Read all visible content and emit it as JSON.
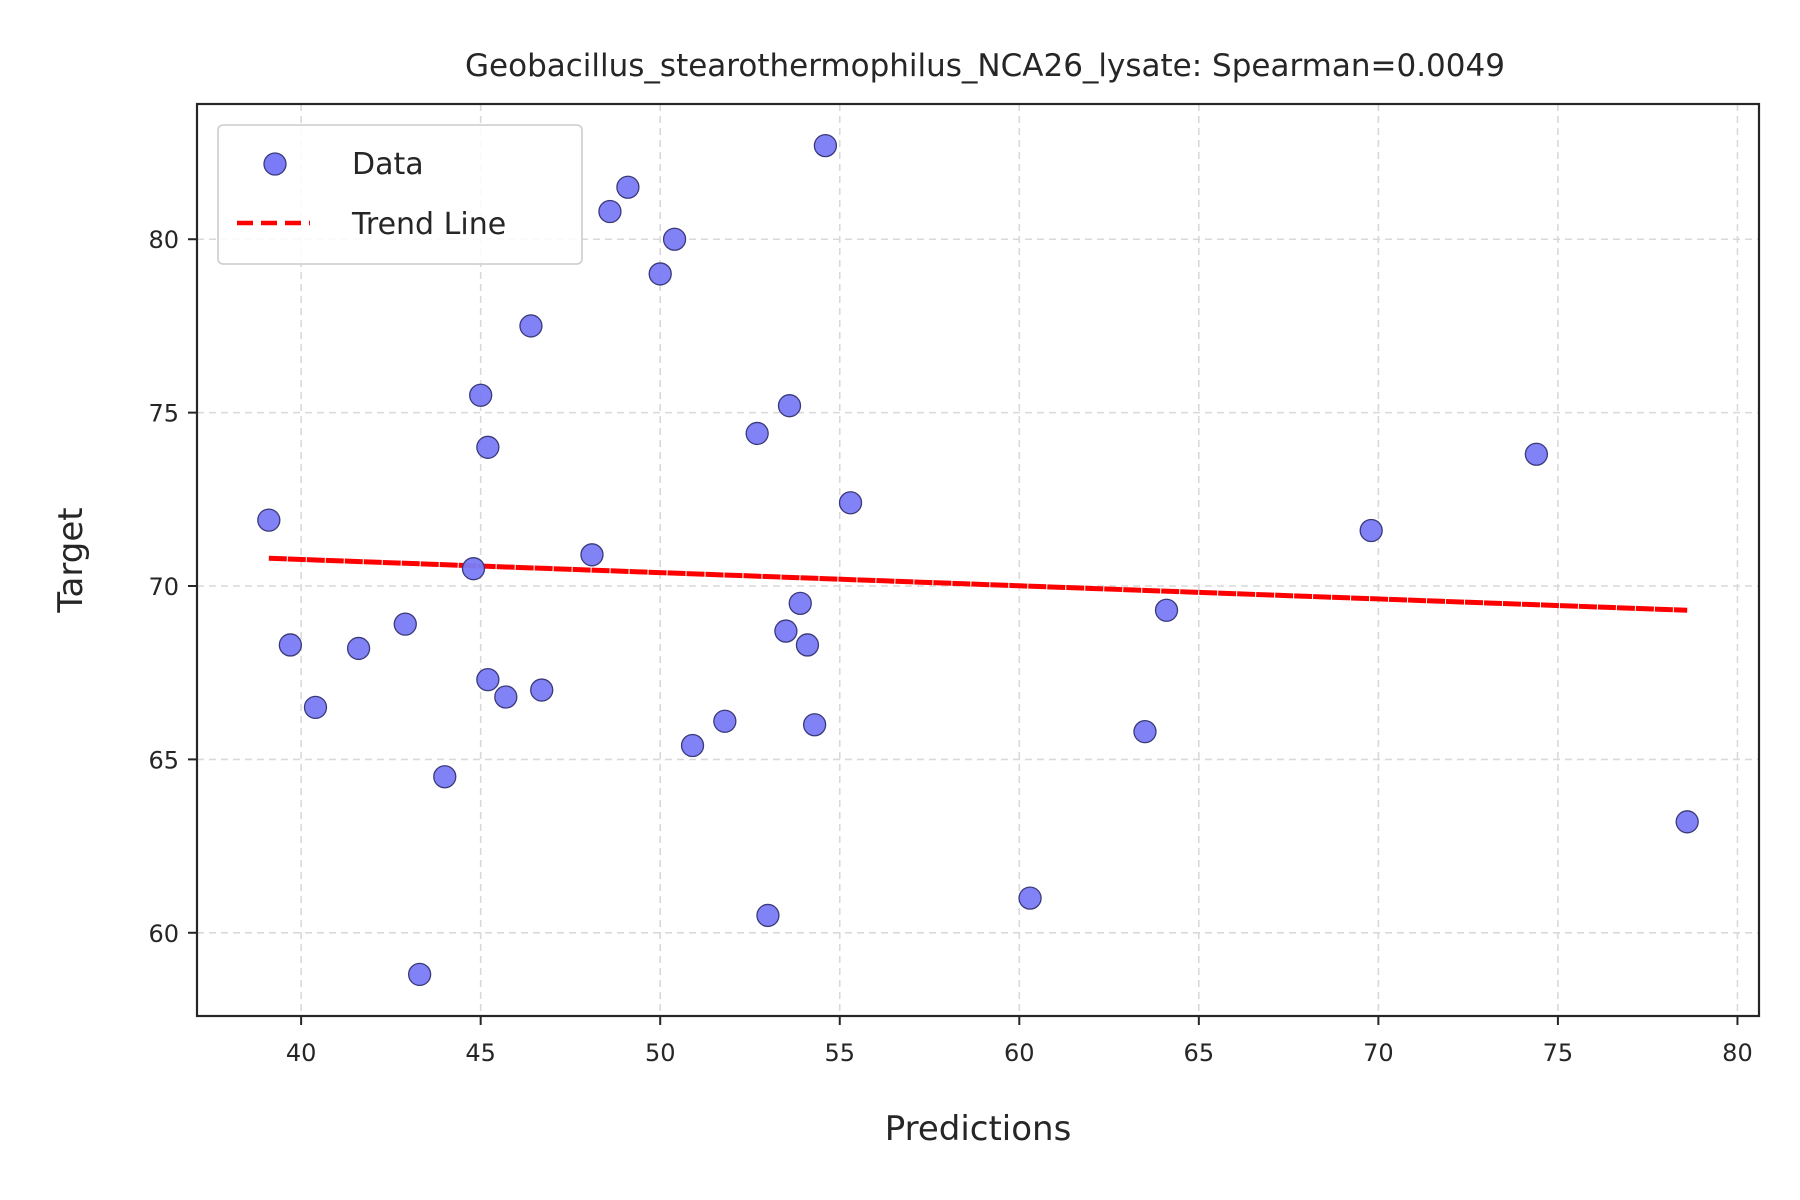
{
  "chart_data": {
    "type": "scatter",
    "title": "Geobacillus_stearothermophilus_NCA26_lysate: Spearman=0.0049",
    "xlabel": "Predictions",
    "ylabel": "Target",
    "xlim": [
      37.1,
      80.6
    ],
    "ylim": [
      57.6,
      83.9
    ],
    "xticks": [
      40,
      45,
      50,
      55,
      60,
      65,
      70,
      75,
      80
    ],
    "yticks": [
      60,
      65,
      70,
      75,
      80
    ],
    "grid": true,
    "legend_position": "top-left",
    "colors": {
      "points": "#7b7bf7",
      "trend": "#ff0000"
    },
    "series": [
      {
        "name": "Data",
        "kind": "scatter",
        "points": [
          [
            39.1,
            71.9
          ],
          [
            39.7,
            68.3
          ],
          [
            40.4,
            66.5
          ],
          [
            41.6,
            68.2
          ],
          [
            42.9,
            68.9
          ],
          [
            43.3,
            58.8
          ],
          [
            44.0,
            64.5
          ],
          [
            44.8,
            70.5
          ],
          [
            45.0,
            75.5
          ],
          [
            45.2,
            74.0
          ],
          [
            45.2,
            67.3
          ],
          [
            45.7,
            66.8
          ],
          [
            46.4,
            77.5
          ],
          [
            46.7,
            67.0
          ],
          [
            48.1,
            70.9
          ],
          [
            48.6,
            80.8
          ],
          [
            49.1,
            81.5
          ],
          [
            50.0,
            79.0
          ],
          [
            50.4,
            80.0
          ],
          [
            50.9,
            65.4
          ],
          [
            51.8,
            66.1
          ],
          [
            52.7,
            74.4
          ],
          [
            53.0,
            60.5
          ],
          [
            53.5,
            68.7
          ],
          [
            53.6,
            75.2
          ],
          [
            53.9,
            69.5
          ],
          [
            54.1,
            68.3
          ],
          [
            54.3,
            66.0
          ],
          [
            54.6,
            82.7
          ],
          [
            55.3,
            72.4
          ],
          [
            60.3,
            61.0
          ],
          [
            63.5,
            65.8
          ],
          [
            64.1,
            69.3
          ],
          [
            69.8,
            71.6
          ],
          [
            74.4,
            73.8
          ],
          [
            78.6,
            63.2
          ]
        ]
      },
      {
        "name": "Trend Line",
        "kind": "line",
        "points": [
          [
            39.1,
            70.8
          ],
          [
            78.6,
            69.3
          ]
        ]
      }
    ]
  }
}
